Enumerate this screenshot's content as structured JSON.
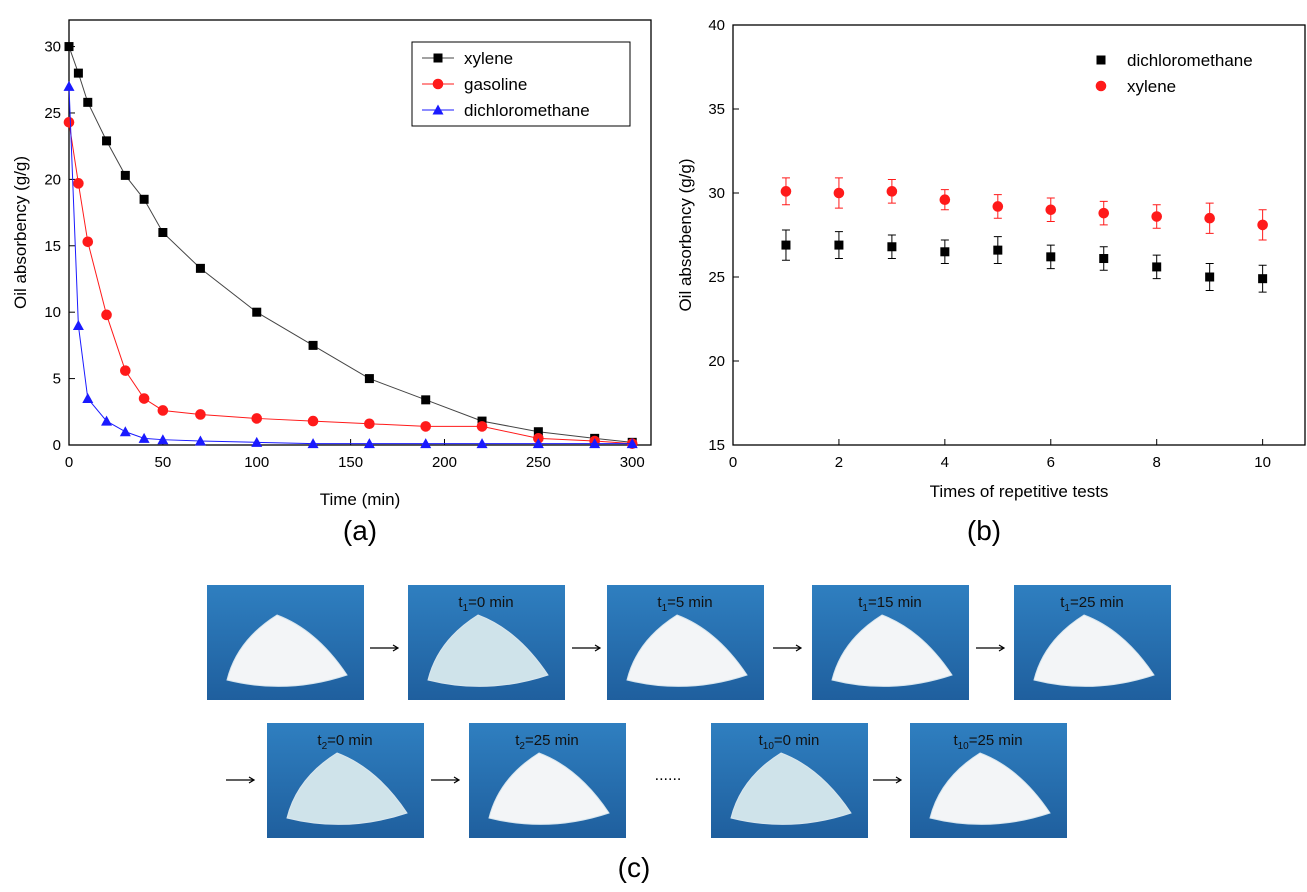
{
  "chart_data": [
    {
      "type": "line",
      "panel_label": "(a)",
      "xlabel": "Time (min)",
      "ylabel": "Oil absorbency (g/g)",
      "x": [
        0,
        5,
        10,
        20,
        30,
        40,
        50,
        70,
        100,
        130,
        160,
        190,
        220,
        250,
        280,
        300
      ],
      "series": [
        {
          "name": "xylene",
          "color": "#000000",
          "line_color": "#444444",
          "marker": "square",
          "values": [
            30,
            28,
            25.8,
            22.9,
            20.3,
            18.5,
            16,
            13.3,
            10,
            7.5,
            5,
            3.4,
            1.8,
            1,
            0.5,
            0.2
          ]
        },
        {
          "name": "gasoline",
          "color": "#ff1a1a",
          "line_color": "#ff1a1a",
          "marker": "circle",
          "values": [
            24.3,
            19.7,
            15.3,
            9.8,
            5.6,
            3.5,
            2.6,
            2.3,
            2,
            1.8,
            1.6,
            1.4,
            1.4,
            0.5,
            0.3,
            0.1
          ]
        },
        {
          "name": "dichloromethane",
          "color": "#1a1aff",
          "line_color": "#1a1aff",
          "marker": "triangle",
          "values": [
            27,
            9,
            3.5,
            1.8,
            1,
            0.5,
            0.4,
            0.3,
            0.2,
            0.1,
            0.1,
            0.1,
            0.1,
            0.1,
            0.1,
            0.1
          ]
        }
      ],
      "xlim": [
        0,
        310
      ],
      "ylim": [
        0,
        32
      ],
      "xticks": [
        0,
        50,
        100,
        150,
        200,
        250,
        300
      ],
      "yticks": [
        0,
        5,
        10,
        15,
        20,
        25,
        30
      ],
      "legend": "upper right"
    },
    {
      "type": "scatter",
      "panel_label": "(b)",
      "xlabel": "Times of repetitive tests",
      "ylabel": "Oil absorbency (g/g)",
      "x": [
        1,
        2,
        3,
        4,
        5,
        6,
        7,
        8,
        9,
        10
      ],
      "series": [
        {
          "name": "dichloromethane",
          "color": "#000000",
          "marker": "square",
          "values": [
            26.9,
            26.9,
            26.8,
            26.5,
            26.6,
            26.2,
            26.1,
            25.6,
            25.0,
            24.9
          ],
          "errors": [
            0.9,
            0.8,
            0.7,
            0.7,
            0.8,
            0.7,
            0.7,
            0.7,
            0.8,
            0.8
          ]
        },
        {
          "name": "xylene",
          "color": "#ff1a1a",
          "marker": "circle",
          "values": [
            30.1,
            30.0,
            30.1,
            29.6,
            29.2,
            29.0,
            28.8,
            28.6,
            28.5,
            28.1
          ],
          "errors": [
            0.8,
            0.9,
            0.7,
            0.6,
            0.7,
            0.7,
            0.7,
            0.7,
            0.9,
            0.9
          ]
        }
      ],
      "xlim": [
        0,
        10.8
      ],
      "ylim": [
        15,
        40
      ],
      "xticks": [
        0,
        2,
        4,
        6,
        8,
        10
      ],
      "yticks": [
        15,
        20,
        25,
        30,
        35,
        40
      ],
      "legend": "upper right"
    }
  ],
  "figure_c": {
    "panel_label": "(c)",
    "ellipsis": "......",
    "photos": [
      {
        "t": "t",
        "sub": "1",
        "text": "=0 min"
      },
      {
        "t": "t",
        "sub": "1",
        "text": "=5 min"
      },
      {
        "t": "t",
        "sub": "1",
        "text": "=15 min"
      },
      {
        "t": "t",
        "sub": "1",
        "text": "=25 min"
      },
      {
        "t": "t",
        "sub": "2",
        "text": "=0 min"
      },
      {
        "t": "t",
        "sub": "2",
        "text": "=25 min"
      },
      {
        "t": "t",
        "sub": "10",
        "text": "=0 min"
      },
      {
        "t": "t",
        "sub": "10",
        "text": "=25 min"
      }
    ]
  }
}
